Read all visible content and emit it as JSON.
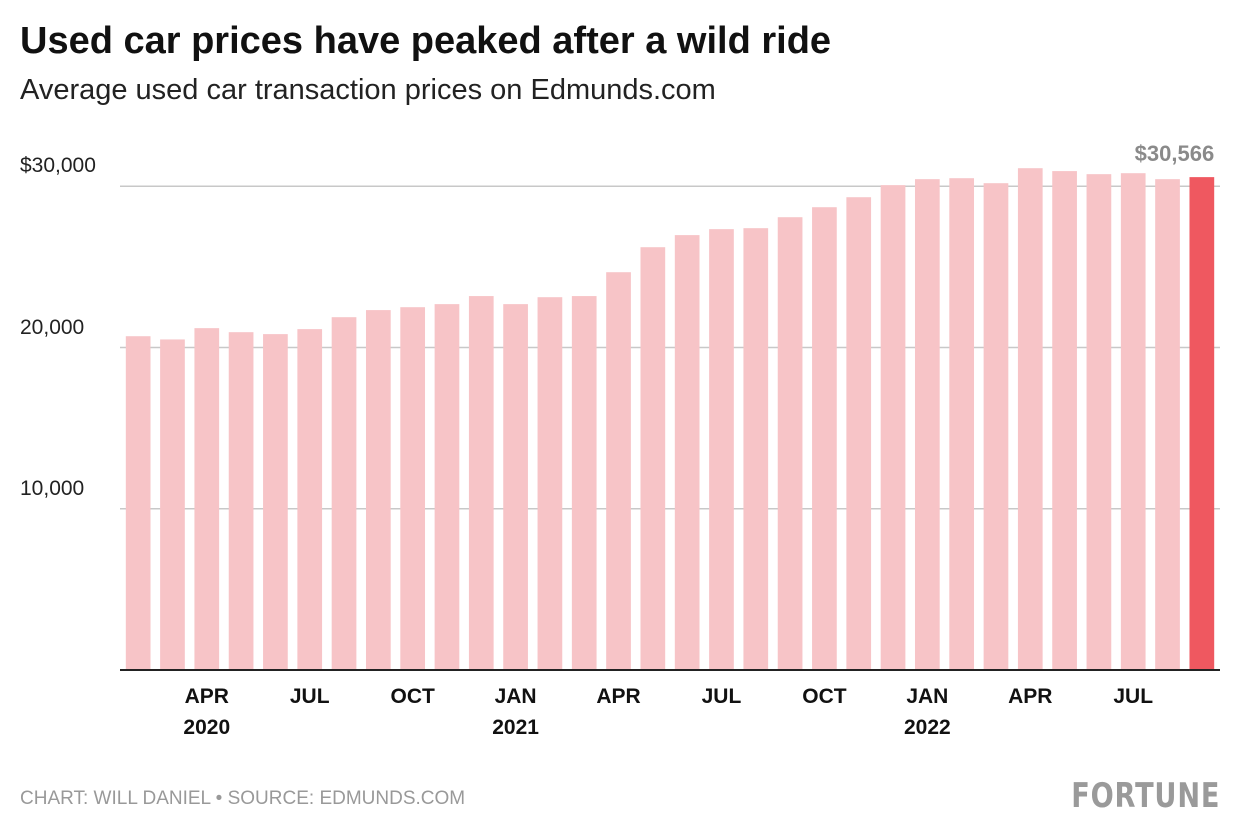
{
  "chart_data": {
    "type": "bar",
    "title": "Used car prices have peaked after a wild ride",
    "subtitle": "Average used car transaction prices on Edmunds.com",
    "categories": [
      null,
      null,
      "APR\n2020",
      null,
      null,
      "JUL",
      null,
      null,
      "OCT",
      null,
      null,
      "JAN\n2021",
      null,
      null,
      "APR",
      null,
      null,
      "JUL",
      null,
      null,
      "OCT",
      null,
      null,
      "JAN\n2022",
      null,
      null,
      "APR",
      null,
      null,
      "JUL",
      null,
      null
    ],
    "values": [
      20700,
      20500,
      21200,
      20950,
      20830,
      21140,
      21880,
      22320,
      22500,
      22690,
      23190,
      22690,
      23120,
      23190,
      24670,
      26220,
      26970,
      27340,
      27400,
      28080,
      28700,
      29320,
      30070,
      30440,
      30500,
      30190,
      31120,
      30940,
      30750,
      30810,
      30440,
      30566
    ],
    "value_labels": [
      null,
      null,
      null,
      null,
      null,
      null,
      null,
      null,
      null,
      null,
      null,
      null,
      null,
      null,
      null,
      null,
      null,
      null,
      null,
      null,
      null,
      null,
      null,
      null,
      null,
      null,
      null,
      null,
      null,
      null,
      null,
      "$30,566"
    ],
    "color": "#f7c4c7",
    "highlight_color": "#ef5860",
    "ylim": [
      0,
      32000
    ],
    "yticks": [
      {
        "value": 10000,
        "label": "10,000"
      },
      {
        "value": 20000,
        "label": "20,000"
      },
      {
        "value": 30000,
        "label": "$30,000"
      }
    ],
    "grid": true,
    "source": "CHART: WILL DANIEL • SOURCE: EDMUNDS.COM",
    "logo": "FORTUNE"
  }
}
